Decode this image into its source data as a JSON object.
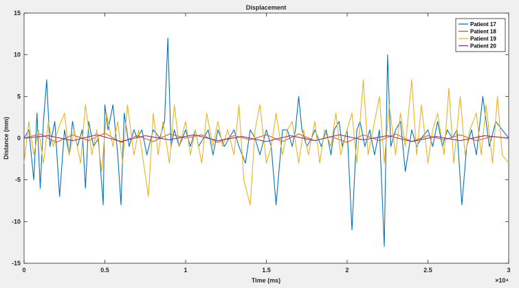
{
  "chart_data": {
    "type": "line",
    "title": "Displacement",
    "xlabel": "Time (ms)",
    "ylabel": "Distance (mm)",
    "x_exponent": "×10⁴",
    "xlim": [
      0,
      3
    ],
    "ylim": [
      -15,
      15
    ],
    "x_ticks": [
      0,
      0.5,
      1,
      1.5,
      2,
      2.5,
      3
    ],
    "x_tick_labels": [
      "0",
      "0.5",
      "1",
      "1.5",
      "2",
      "2.5",
      "3"
    ],
    "y_ticks": [
      -15,
      -10,
      -5,
      0,
      5,
      10,
      15
    ],
    "y_tick_labels": [
      "-15",
      "-10",
      "-5",
      "0",
      "5",
      "10",
      "15"
    ],
    "grid": false,
    "legend_position": "top-right",
    "series": [
      {
        "name": "Patient 17",
        "color": "#0072BD",
        "x": [
          0,
          0.03,
          0.06,
          0.08,
          0.1,
          0.12,
          0.14,
          0.16,
          0.19,
          0.22,
          0.25,
          0.28,
          0.3,
          0.33,
          0.36,
          0.38,
          0.4,
          0.43,
          0.46,
          0.49,
          0.5,
          0.52,
          0.55,
          0.58,
          0.6,
          0.62,
          0.65,
          0.68,
          0.7,
          0.73,
          0.76,
          0.8,
          0.84,
          0.87,
          0.89,
          0.91,
          0.93,
          0.96,
          0.98,
          1.0,
          1.03,
          1.06,
          1.08,
          1.11,
          1.14,
          1.17,
          1.2,
          1.24,
          1.27,
          1.3,
          1.33,
          1.37,
          1.4,
          1.43,
          1.46,
          1.5,
          1.53,
          1.56,
          1.6,
          1.63,
          1.66,
          1.68,
          1.7,
          1.72,
          1.75,
          1.78,
          1.8,
          1.84,
          1.87,
          1.9,
          1.92,
          1.95,
          1.97,
          2.0,
          2.03,
          2.06,
          2.08,
          2.11,
          2.14,
          2.17,
          2.2,
          2.23,
          2.25,
          2.27,
          2.3,
          2.33,
          2.36,
          2.4,
          2.43,
          2.46,
          2.5,
          2.53,
          2.56,
          2.59,
          2.62,
          2.65,
          2.68,
          2.71,
          2.74,
          2.77,
          2.8,
          2.84,
          2.88,
          2.92,
          2.96,
          3.0
        ],
        "y": [
          0,
          1,
          -5,
          3,
          -6,
          2,
          7,
          -1,
          2,
          -7,
          1,
          -2,
          2,
          -1,
          1,
          -6,
          2,
          -1,
          0,
          -8,
          4,
          1,
          4,
          -2,
          -8,
          3,
          -1,
          1,
          0,
          1,
          -2,
          1,
          0,
          2,
          12,
          -1,
          1,
          -1,
          0,
          1,
          -1,
          1,
          -1,
          0,
          1,
          -2,
          1,
          -1,
          0,
          1,
          -1,
          -3,
          1,
          0,
          -2,
          1,
          -1,
          -8,
          1,
          1,
          -1,
          1,
          5,
          1,
          -1,
          0,
          1,
          -1,
          1,
          -2,
          1,
          2,
          -1,
          1,
          -11,
          1,
          2,
          -1,
          1,
          -2,
          1,
          -13,
          10,
          -1,
          1,
          2,
          -4,
          1,
          -1,
          0,
          1,
          -1,
          2,
          -1,
          1,
          0,
          1,
          -8,
          -1,
          1,
          -2,
          5,
          -1,
          2,
          1,
          0
        ]
      },
      {
        "name": "Patient 18",
        "color": "#D95319",
        "x": [
          0,
          0.1,
          0.2,
          0.3,
          0.4,
          0.5,
          0.6,
          0.7,
          0.8,
          0.9,
          1.0,
          1.1,
          1.2,
          1.3,
          1.4,
          1.5,
          1.6,
          1.7,
          1.8,
          1.9,
          2.0,
          2.1,
          2.2,
          2.3,
          2.4,
          2.5,
          2.6,
          2.7,
          2.8,
          2.9,
          3.0
        ],
        "y": [
          0,
          0.5,
          -0.5,
          0.4,
          -0.3,
          0.6,
          -0.5,
          0.3,
          -0.4,
          0.5,
          0,
          0.4,
          -0.5,
          0.3,
          -0.2,
          0.4,
          -0.4,
          0.5,
          -0.3,
          0.2,
          -0.5,
          0.4,
          -0.3,
          0.5,
          -0.4,
          0.3,
          -0.2,
          0.4,
          -0.3,
          0.2,
          0
        ]
      },
      {
        "name": "Patient 19",
        "color": "#EDB120",
        "x": [
          0,
          0.03,
          0.06,
          0.09,
          0.12,
          0.15,
          0.18,
          0.21,
          0.25,
          0.28,
          0.31,
          0.35,
          0.38,
          0.42,
          0.45,
          0.48,
          0.51,
          0.55,
          0.58,
          0.61,
          0.64,
          0.68,
          0.71,
          0.74,
          0.77,
          0.8,
          0.83,
          0.86,
          0.9,
          0.93,
          0.96,
          1.0,
          1.03,
          1.06,
          1.1,
          1.13,
          1.17,
          1.2,
          1.23,
          1.26,
          1.3,
          1.33,
          1.36,
          1.4,
          1.43,
          1.46,
          1.5,
          1.53,
          1.56,
          1.6,
          1.63,
          1.66,
          1.7,
          1.73,
          1.76,
          1.8,
          1.83,
          1.86,
          1.9,
          1.93,
          1.96,
          2.0,
          2.03,
          2.06,
          2.1,
          2.13,
          2.16,
          2.2,
          2.23,
          2.26,
          2.3,
          2.33,
          2.36,
          2.4,
          2.43,
          2.46,
          2.5,
          2.53,
          2.56,
          2.6,
          2.63,
          2.66,
          2.7,
          2.73,
          2.76,
          2.8,
          2.83,
          2.86,
          2.9,
          2.93,
          2.96,
          3.0
        ],
        "y": [
          -3,
          2,
          -2,
          1,
          -3,
          2,
          -1,
          1,
          3,
          -2,
          1,
          -3,
          4,
          -2,
          1,
          -4,
          3,
          -1,
          2,
          -3,
          4,
          -2,
          1,
          -3,
          -7,
          3,
          -2,
          2,
          -3,
          4,
          -1,
          2,
          -2,
          1,
          -3,
          3,
          -1,
          2,
          -1,
          1,
          -2,
          4,
          -5,
          -8,
          1,
          4,
          -3,
          -1,
          3,
          -2,
          1,
          2,
          -3,
          1,
          -2,
          2,
          -3,
          1,
          -1,
          3,
          -2,
          1,
          3,
          -3,
          7,
          -2,
          1,
          5,
          -3,
          4,
          -2,
          3,
          -1,
          7,
          -2,
          4,
          -3,
          1,
          3,
          -2,
          6,
          -3,
          5,
          -2,
          1,
          3,
          -2,
          4,
          -3,
          5,
          -2,
          -3
        ]
      },
      {
        "name": "Patient 20",
        "color": "#7E2F8E",
        "x": [
          0,
          0.15,
          0.3,
          0.45,
          0.6,
          0.75,
          0.9,
          1.05,
          1.2,
          1.35,
          1.5,
          1.65,
          1.8,
          1.95,
          2.1,
          2.25,
          2.4,
          2.55,
          2.7,
          2.85,
          3.0
        ],
        "y": [
          0,
          0.3,
          -0.3,
          0.4,
          -0.4,
          0.3,
          -0.2,
          0.4,
          -0.3,
          0.2,
          -0.4,
          0.3,
          -0.3,
          0.4,
          -0.2,
          0.3,
          -0.4,
          0.2,
          -0.3,
          0.3,
          0
        ]
      }
    ]
  }
}
